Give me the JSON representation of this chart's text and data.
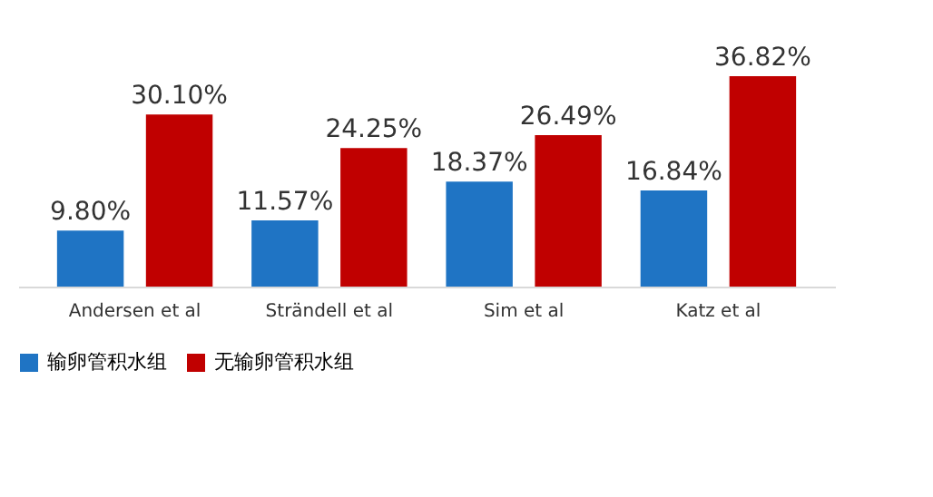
{
  "chart_data": {
    "type": "bar",
    "categories": [
      "Andersen et al",
      "Strändell et al",
      "Sim et al",
      "Katz et al"
    ],
    "series": [
      {
        "name": "输卵管积水组",
        "color": "#1f74c4",
        "values": [
          9.8,
          11.57,
          18.37,
          16.84
        ],
        "value_labels": [
          "9.80%",
          "11.57%",
          "18.37%",
          "16.84%"
        ]
      },
      {
        "name": "无输卵管积水组",
        "color": "#c00000",
        "values": [
          30.1,
          24.25,
          26.49,
          36.82
        ],
        "value_labels": [
          "30.10%",
          "24.25%",
          "26.49%",
          "36.82%"
        ]
      }
    ],
    "legend": "bottom",
    "grid": false
  }
}
